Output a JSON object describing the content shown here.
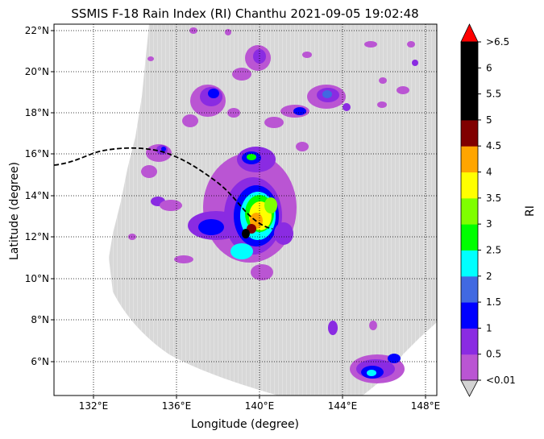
{
  "title": "SSMIS F-18 Rain Index (RI) Chanthu 2021-09-05 19:02:48",
  "xlabel": "Longitude (degree)",
  "ylabel": "Latitude (degree)",
  "colorbar_label": "RI",
  "x_ticks": [
    "132°E",
    "136°E",
    "140°E",
    "144°E",
    "148°E"
  ],
  "y_ticks": [
    "6°N",
    "8°N",
    "10°N",
    "12°N",
    "14°N",
    "16°N",
    "18°N",
    "20°N",
    "22°N"
  ],
  "colorbar_ticks": [
    "<0.01",
    "0.5",
    "1",
    "1.5",
    "2",
    "2.5",
    "3",
    "3.5",
    "4",
    "4.5",
    "5",
    "5.5",
    "6",
    ">6.5"
  ],
  "colors": {
    "swath": "#d3d3d3",
    "track": "#000000",
    "scale": [
      "#ba55d3",
      "#8a2be2",
      "#0000ff",
      "#4169e1",
      "#00ffff",
      "#00ff00",
      "#7fff00",
      "#ffff00",
      "#ffa500",
      "#800000",
      "#000000",
      "#000000",
      "#000000"
    ],
    "over": "#ff0000",
    "under": "#d3d3d3"
  }
}
